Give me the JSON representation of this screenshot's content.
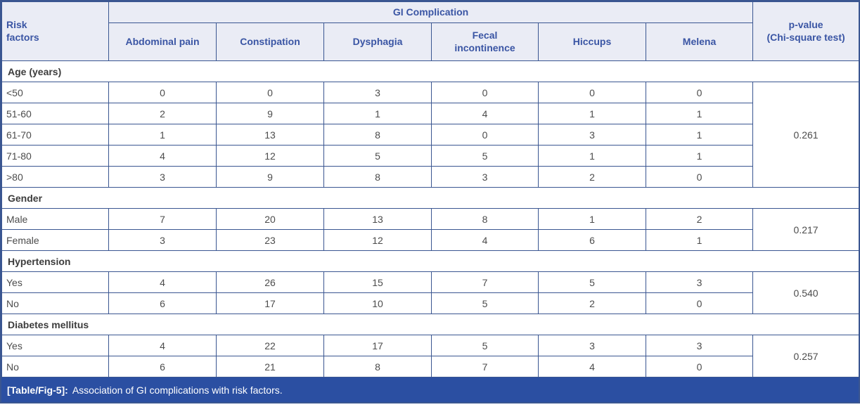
{
  "table": {
    "risk_factors_header": "Risk\nfactors",
    "group_header": "GI Complication",
    "pvalue_header": "p-value\n(Chi-square test)",
    "columns": [
      "Abdominal pain",
      "Constipation",
      "Dysphagia",
      "Fecal\nincontinence",
      "Hiccups",
      "Melena"
    ],
    "sections": [
      {
        "title": "Age (years)",
        "p_value": "0.261",
        "rows": [
          {
            "label": "<50",
            "values": [
              "0",
              "0",
              "3",
              "0",
              "0",
              "0"
            ]
          },
          {
            "label": "51-60",
            "values": [
              "2",
              "9",
              "1",
              "4",
              "1",
              "1"
            ]
          },
          {
            "label": "61-70",
            "values": [
              "1",
              "13",
              "8",
              "0",
              "3",
              "1"
            ]
          },
          {
            "label": "71-80",
            "values": [
              "4",
              "12",
              "5",
              "5",
              "1",
              "1"
            ]
          },
          {
            "label": ">80",
            "values": [
              "3",
              "9",
              "8",
              "3",
              "2",
              "0"
            ]
          }
        ]
      },
      {
        "title": "Gender",
        "p_value": "0.217",
        "rows": [
          {
            "label": "Male",
            "values": [
              "7",
              "20",
              "13",
              "8",
              "1",
              "2"
            ]
          },
          {
            "label": "Female",
            "values": [
              "3",
              "23",
              "12",
              "4",
              "6",
              "1"
            ]
          }
        ]
      },
      {
        "title": "Hypertension",
        "p_value": "0.540",
        "rows": [
          {
            "label": "Yes",
            "values": [
              "4",
              "26",
              "15",
              "7",
              "5",
              "3"
            ]
          },
          {
            "label": "No",
            "values": [
              "6",
              "17",
              "10",
              "5",
              "2",
              "0"
            ]
          }
        ]
      },
      {
        "title": "Diabetes mellitus",
        "p_value": "0.257",
        "rows": [
          {
            "label": "Yes",
            "values": [
              "4",
              "22",
              "17",
              "5",
              "3",
              "3"
            ]
          },
          {
            "label": "No",
            "values": [
              "6",
              "21",
              "8",
              "7",
              "4",
              "0"
            ]
          }
        ]
      }
    ],
    "caption_label": "[Table/Fig-5]:",
    "caption_text": "Association of GI complications with risk factors.",
    "colors": {
      "border": "#3a5691",
      "header_bg": "#eaecf5",
      "header_text": "#3a55a4",
      "caption_bg": "#2b4fa2",
      "caption_text": "#ffffff"
    }
  }
}
